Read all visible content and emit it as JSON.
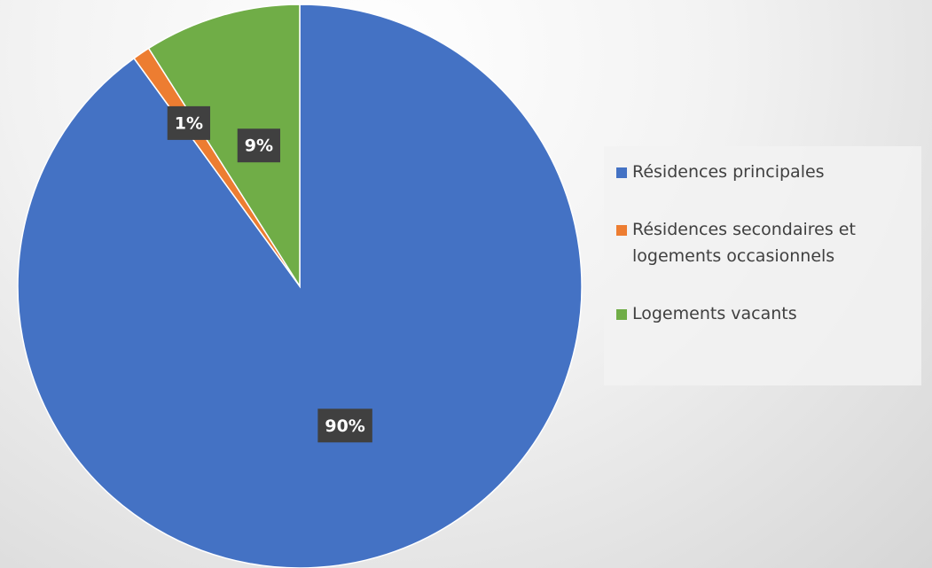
{
  "chart_data": {
    "type": "pie",
    "categories": [
      "Résidences principales",
      "Résidences secondaires et logements occasionnels",
      "Logements vacants"
    ],
    "values": [
      90,
      1,
      9
    ],
    "value_labels": [
      "90%",
      "1%",
      "9%"
    ],
    "colors": [
      "#4472c4",
      "#ed7d31",
      "#70ad47"
    ],
    "legend": "right"
  }
}
